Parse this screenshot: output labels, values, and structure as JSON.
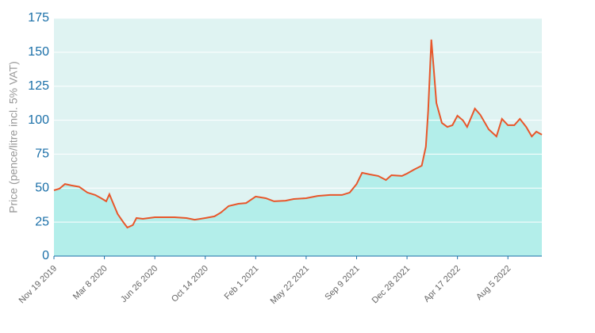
{
  "chart_data": {
    "type": "area",
    "y_label": "Price (pence/litre incl. 5% VAT)",
    "x": [
      "2019-11-19",
      "2019-12-01",
      "2019-12-13",
      "2019-12-27",
      "2020-01-13",
      "2020-01-31",
      "2020-02-17",
      "2020-03-01",
      "2020-03-12",
      "2020-03-19",
      "2020-03-26",
      "2020-04-06",
      "2020-04-18",
      "2020-04-27",
      "2020-05-09",
      "2020-05-17",
      "2020-05-31",
      "2020-06-26",
      "2020-08-08",
      "2020-09-03",
      "2020-09-21",
      "2020-10-14",
      "2020-11-03",
      "2020-11-17",
      "2020-12-04",
      "2020-12-25",
      "2021-01-11",
      "2021-02-01",
      "2021-02-23",
      "2021-03-13",
      "2021-04-07",
      "2021-04-25",
      "2021-05-22",
      "2021-06-16",
      "2021-07-13",
      "2021-08-08",
      "2021-08-25",
      "2021-09-09",
      "2021-09-21",
      "2021-10-08",
      "2021-10-26",
      "2021-11-12",
      "2021-11-24",
      "2021-12-17",
      "2021-12-28",
      "2022-01-12",
      "2022-01-29",
      "2022-02-07",
      "2022-02-12",
      "2022-02-19",
      "2022-02-24",
      "2022-03-02",
      "2022-03-14",
      "2022-03-26",
      "2022-04-06",
      "2022-04-17",
      "2022-04-29",
      "2022-05-08",
      "2022-05-25",
      "2022-06-06",
      "2022-06-24",
      "2022-07-11",
      "2022-07-23",
      "2022-08-05",
      "2022-08-19",
      "2022-08-31",
      "2022-09-14",
      "2022-09-26",
      "2022-10-06",
      "2022-10-18"
    ],
    "series": [
      {
        "name": "Price",
        "color": "#e8562a",
        "fill": "#b3eeea",
        "values": [
          48.4,
          49.6,
          53,
          52,
          51,
          46.7,
          45,
          42.6,
          40.3,
          45.5,
          39.7,
          31,
          25,
          21,
          22.8,
          28,
          27.4,
          28.6,
          28.6,
          28,
          26.8,
          28,
          29.2,
          32,
          36.8,
          38.5,
          39,
          43.8,
          42.6,
          40.3,
          40.8,
          42,
          42.6,
          44.3,
          45,
          45,
          46.7,
          53,
          61.3,
          60.1,
          59,
          56,
          59.5,
          59,
          60.7,
          63.6,
          66.5,
          80.5,
          106.8,
          159.3,
          138.9,
          112.6,
          98,
          95,
          96.3,
          103.3,
          99.8,
          95,
          108.5,
          103.9,
          93.3,
          88,
          101,
          96.3,
          96.3,
          101,
          95,
          88,
          91.6,
          89.3
        ]
      }
    ],
    "xlim": [
      "2019-11-19",
      "2022-10-18"
    ],
    "xticks": [
      {
        "value": "2019-11-19",
        "label": "Nov 19 2019"
      },
      {
        "value": "2020-03-08",
        "label": "Mar 8 2020"
      },
      {
        "value": "2020-06-26",
        "label": "Jun 26 2020"
      },
      {
        "value": "2020-10-14",
        "label": "Oct 14 2020"
      },
      {
        "value": "2021-02-01",
        "label": "Feb 1 2021"
      },
      {
        "value": "2021-05-22",
        "label": "May 22 2021"
      },
      {
        "value": "2021-09-09",
        "label": "Sep 9 2021"
      },
      {
        "value": "2021-12-28",
        "label": "Dec 28 2021"
      },
      {
        "value": "2022-04-17",
        "label": "Apr 17 2022"
      },
      {
        "value": "2022-08-05",
        "label": "Aug 5 2022"
      }
    ],
    "ylim": [
      0,
      175
    ],
    "yticks": [
      0,
      25,
      50,
      75,
      100,
      125,
      150,
      175
    ],
    "grid": true,
    "plot_background": "#dff3f2"
  }
}
